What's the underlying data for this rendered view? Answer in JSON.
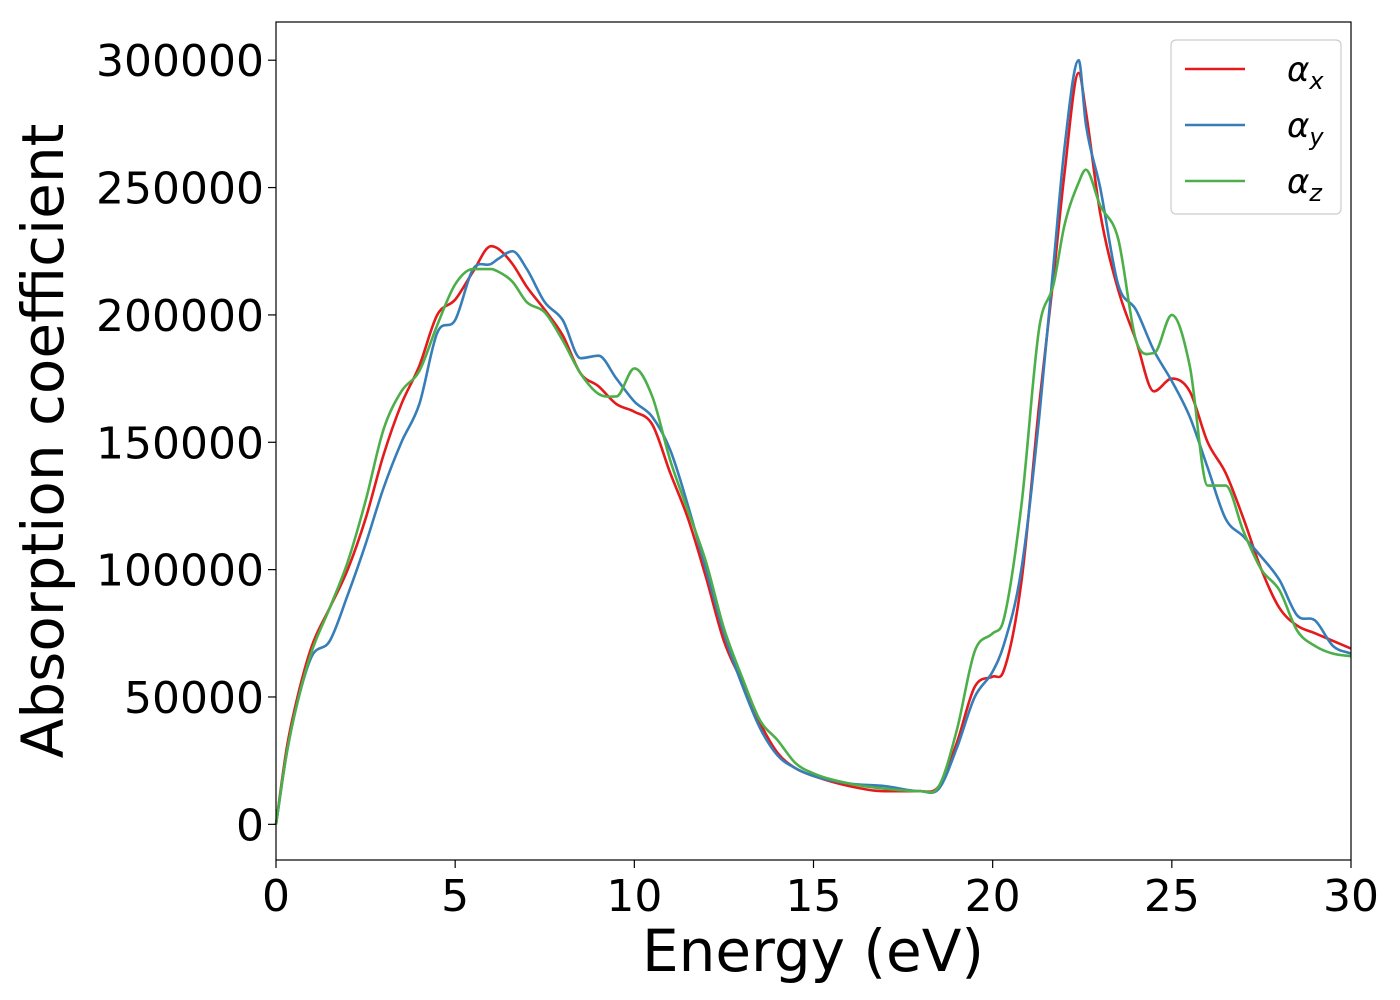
{
  "chart_data": {
    "type": "line",
    "title": "",
    "xlabel": "Energy (eV)",
    "ylabel": "Absorption coefficient",
    "xlim": [
      0,
      30
    ],
    "ylim": [
      -14000,
      315000
    ],
    "xticks": [
      0,
      5,
      10,
      15,
      20,
      25,
      30
    ],
    "xtick_labels": [
      "0",
      "5",
      "10",
      "15",
      "20",
      "25",
      "30"
    ],
    "yticks": [
      0,
      50000,
      100000,
      150000,
      200000,
      250000,
      300000
    ],
    "ytick_labels": [
      "0",
      "50000",
      "100000",
      "150000",
      "200000",
      "250000",
      "300000"
    ],
    "grid": false,
    "legend_position": "top-right",
    "series": [
      {
        "name": "αx",
        "symbol": "α",
        "sub": "x",
        "color": "#e41a1c",
        "x": [
          0,
          0.3,
          0.6,
          1,
          1.5,
          2,
          2.5,
          3,
          3.5,
          4,
          4.5,
          5,
          5.5,
          6,
          6.2,
          6.6,
          7,
          7.5,
          8,
          8.5,
          9,
          9.5,
          10,
          10.5,
          11,
          11.5,
          12,
          12.5,
          13,
          13.5,
          14,
          14.5,
          15,
          16,
          17,
          18,
          18.5,
          19,
          19.5,
          20,
          20.3,
          20.8,
          21.3,
          21.7,
          22,
          22.4,
          22.6,
          23,
          23.5,
          24,
          24.5,
          25,
          25.5,
          26,
          26.5,
          27,
          27.5,
          28,
          28.5,
          29,
          29.5,
          30
        ],
        "y": [
          0,
          30000,
          50000,
          70000,
          85000,
          100000,
          120000,
          145000,
          165000,
          180000,
          200000,
          206000,
          217000,
          227000,
          226000,
          220000,
          211000,
          202000,
          192000,
          177000,
          172000,
          165000,
          162000,
          157000,
          138000,
          120000,
          97000,
          72000,
          56000,
          40000,
          28000,
          22000,
          19000,
          15000,
          13000,
          13000,
          15000,
          32000,
          54000,
          58000,
          60000,
          95000,
          165000,
          215000,
          255000,
          295000,
          280000,
          240000,
          210000,
          190000,
          170000,
          175000,
          170000,
          150000,
          138000,
          120000,
          100000,
          85000,
          78000,
          75000,
          72000,
          69000
        ]
      },
      {
        "name": "αy",
        "symbol": "α",
        "sub": "y",
        "color": "#377eb8",
        "x": [
          0,
          0.3,
          0.6,
          1,
          1.5,
          2,
          2.5,
          3,
          3.5,
          4,
          4.5,
          5,
          5.5,
          6,
          6.2,
          6.6,
          7,
          7.5,
          8,
          8.5,
          9,
          9.5,
          10,
          10.5,
          11,
          11.5,
          12,
          12.5,
          13,
          13.5,
          14,
          14.5,
          15,
          16,
          17,
          18,
          18.5,
          19,
          19.5,
          20,
          20.3,
          20.8,
          21.3,
          21.7,
          22,
          22.4,
          22.6,
          23,
          23.5,
          24,
          24.5,
          25,
          25.5,
          26,
          26.5,
          27,
          27.5,
          28,
          28.5,
          29,
          29.5,
          30
        ],
        "y": [
          0,
          28000,
          48000,
          66000,
          72000,
          90000,
          110000,
          132000,
          150000,
          165000,
          193000,
          198000,
          218000,
          220000,
          222000,
          225000,
          218000,
          205000,
          198000,
          183000,
          184000,
          175000,
          166000,
          160000,
          147000,
          125000,
          100000,
          75000,
          55000,
          38000,
          27000,
          22000,
          19000,
          16000,
          15000,
          13000,
          14000,
          30000,
          50000,
          60000,
          70000,
          100000,
          160000,
          220000,
          265000,
          300000,
          275000,
          250000,
          212000,
          202000,
          186000,
          174000,
          160000,
          140000,
          120000,
          113000,
          105000,
          96000,
          82000,
          80000,
          70000,
          67000
        ]
      },
      {
        "name": "αz",
        "symbol": "α",
        "sub": "z",
        "color": "#4daf4a",
        "x": [
          0,
          0.3,
          0.6,
          1,
          1.5,
          2,
          2.5,
          3,
          3.5,
          4,
          4.5,
          5,
          5.5,
          6,
          6.2,
          6.6,
          7,
          7.5,
          8,
          8.5,
          9,
          9.5,
          10,
          10.5,
          11,
          11.5,
          12,
          12.5,
          13,
          13.5,
          14,
          14.5,
          15,
          16,
          17,
          18,
          18.5,
          19,
          19.5,
          20,
          20.3,
          20.8,
          21.3,
          21.7,
          22,
          22.4,
          22.6,
          23,
          23.5,
          24,
          24.5,
          25,
          25.5,
          26,
          26.5,
          27,
          27.5,
          28,
          28.5,
          29,
          29.5,
          30
        ],
        "y": [
          0,
          28000,
          48000,
          68000,
          85000,
          103000,
          127000,
          155000,
          170000,
          178000,
          196000,
          212000,
          218000,
          218000,
          217000,
          213000,
          205000,
          201000,
          190000,
          177000,
          169000,
          168000,
          179000,
          168000,
          143000,
          123000,
          103000,
          77000,
          58000,
          41000,
          33000,
          24000,
          20000,
          16000,
          14000,
          13000,
          15000,
          37000,
          68000,
          75000,
          80000,
          125000,
          195000,
          212000,
          235000,
          252000,
          257000,
          243000,
          230000,
          190000,
          185000,
          200000,
          180000,
          133000,
          133000,
          115000,
          100000,
          92000,
          76000,
          70000,
          67000,
          66000
        ]
      }
    ]
  }
}
